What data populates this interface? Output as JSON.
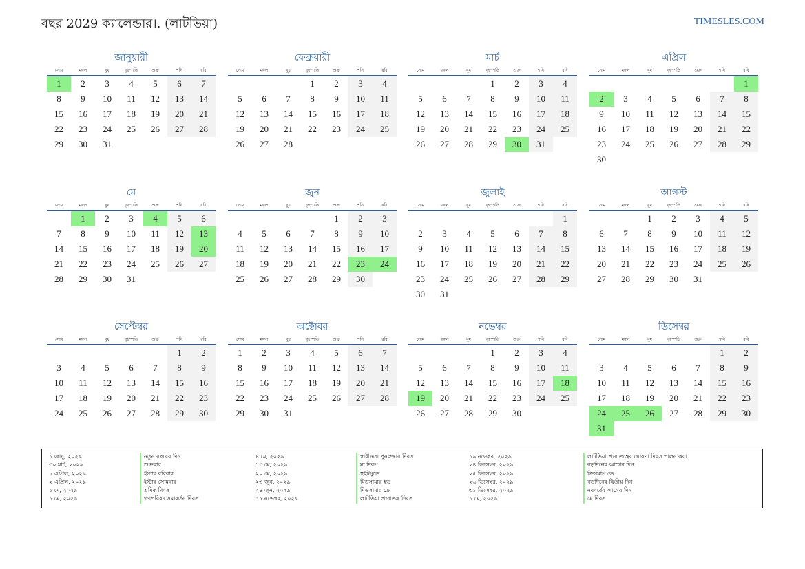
{
  "title": "বছর 2029 ক্যালেন্ডার।. (লাটভিয়া)",
  "site": "TIMESLES.COM",
  "weekdays": [
    "সোম",
    "মঙ্গল",
    "বুধ",
    "বৃহস্পতি",
    "শুক্র",
    "শনি",
    "রবি"
  ],
  "months": [
    {
      "name": "জানুয়ারী",
      "start": 0,
      "days": 31,
      "holidays": [
        1
      ]
    },
    {
      "name": "ফেব্রুয়ারী",
      "start": 3,
      "days": 28,
      "holidays": []
    },
    {
      "name": "মার্চ",
      "start": 3,
      "days": 31,
      "holidays": [
        30
      ]
    },
    {
      "name": "এপ্রিল",
      "start": 6,
      "days": 30,
      "holidays": [
        1,
        2
      ]
    },
    {
      "name": "মে",
      "start": 1,
      "days": 31,
      "holidays": [
        1,
        4,
        13,
        20
      ]
    },
    {
      "name": "জুন",
      "start": 4,
      "days": 30,
      "holidays": [
        23,
        24
      ]
    },
    {
      "name": "জুলাই",
      "start": 6,
      "days": 31,
      "holidays": []
    },
    {
      "name": "আগস্ট",
      "start": 2,
      "days": 31,
      "holidays": []
    },
    {
      "name": "সেপ্টেম্বর",
      "start": 5,
      "days": 30,
      "holidays": []
    },
    {
      "name": "অক্টোবর",
      "start": 0,
      "days": 31,
      "holidays": []
    },
    {
      "name": "নভেম্বর",
      "start": 3,
      "days": 30,
      "holidays": [
        18,
        19
      ]
    },
    {
      "name": "ডিসেম্বর",
      "start": 5,
      "days": 31,
      "holidays": [
        24,
        25,
        26,
        31
      ]
    }
  ],
  "legend": [
    {
      "dates": [
        "১ জানু, ২০২৯",
        "৩০ মার্চ, ২০২৯",
        "১ এপ্রিল, ২০২৯",
        "২ এপ্রিল, ২০২৯",
        "১ মে, ২০২৯",
        "১ মে, ২০২৯"
      ],
      "names": [
        "নতুন বছরের দিন",
        "শুক্রবার",
        "ইস্টার রবিবার",
        "ইস্টার সোমবার",
        "শ্রমিক দিবস",
        "গণপরিষদ সমাবর্তন দিবস"
      ]
    },
    {
      "dates": [
        "৪ মে, ২০২৯",
        "১৩ মে, ২০২৯",
        "২০ মে, ২০২৯",
        "২৩ জুন, ২০২৯",
        "২৪ জুন, ২০২৯",
        "১৮ নভেম্বর, ২০২৯"
      ],
      "names": [
        "স্বাধীনতা পুনরুদ্ধার দিবস",
        "মা দিবস",
        "হুইটসুন্ডে",
        "মিডসামার ইভ",
        "মিডসামার ডে",
        "লাটভিয়া প্রজাতন্ত্র দিবস"
      ]
    },
    {
      "dates": [
        "১৯ নভেম্বর, ২০২৯",
        "২৪ ডিসেম্বর, ২০২৯",
        "২৫ ডিসেম্বর, ২০২৯",
        "২৬ ডিসেম্বর, ২০২৯",
        "৩১ ডিসেম্বর, ২০২৯",
        "১ মে, ২০২৯"
      ],
      "names": [
        "লাটভিয়া প্রজাতন্ত্রের ঘোষণা দিবস পালন করা",
        "বড়দিনের আগের দিন",
        "ক্রিসমাস ডে",
        "বড়দিনের দ্বিতীয় দিন",
        "নববর্ষের আগের দিন",
        "মে দিবস"
      ]
    }
  ]
}
